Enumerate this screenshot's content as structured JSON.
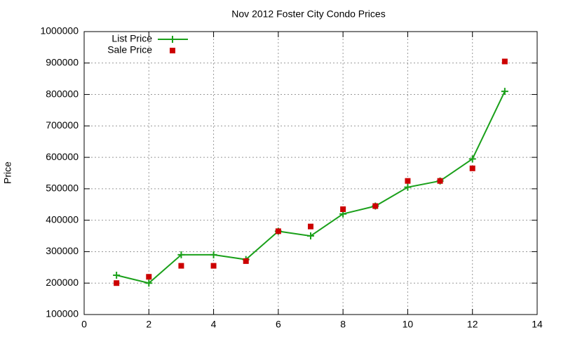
{
  "chart_data": {
    "type": "line",
    "title": "Nov 2012 Foster City Condo Prices",
    "y_label": "Price",
    "x": [
      1,
      2,
      3,
      4,
      5,
      6,
      7,
      8,
      9,
      10,
      11,
      12,
      13
    ],
    "series": [
      {
        "name": "List Price",
        "color": "#1aa01a",
        "style": "linespoints",
        "values": [
          225000,
          200000,
          290000,
          290000,
          275000,
          365000,
          350000,
          420000,
          445000,
          505000,
          525000,
          595000,
          810000
        ]
      },
      {
        "name": "Sale Price",
        "color": "#cc0000",
        "style": "points",
        "values": [
          200000,
          220000,
          255000,
          255000,
          270000,
          365000,
          380000,
          435000,
          445000,
          525000,
          525000,
          565000,
          905000
        ]
      }
    ],
    "xlim": [
      0,
      14
    ],
    "xticks": [
      0,
      2,
      4,
      6,
      8,
      10,
      12,
      14
    ],
    "ylim": [
      100000,
      1000000
    ],
    "yticks": [
      100000,
      200000,
      300000,
      400000,
      500000,
      600000,
      700000,
      800000,
      900000,
      1000000
    ],
    "grid": true,
    "legend": "top-left"
  }
}
